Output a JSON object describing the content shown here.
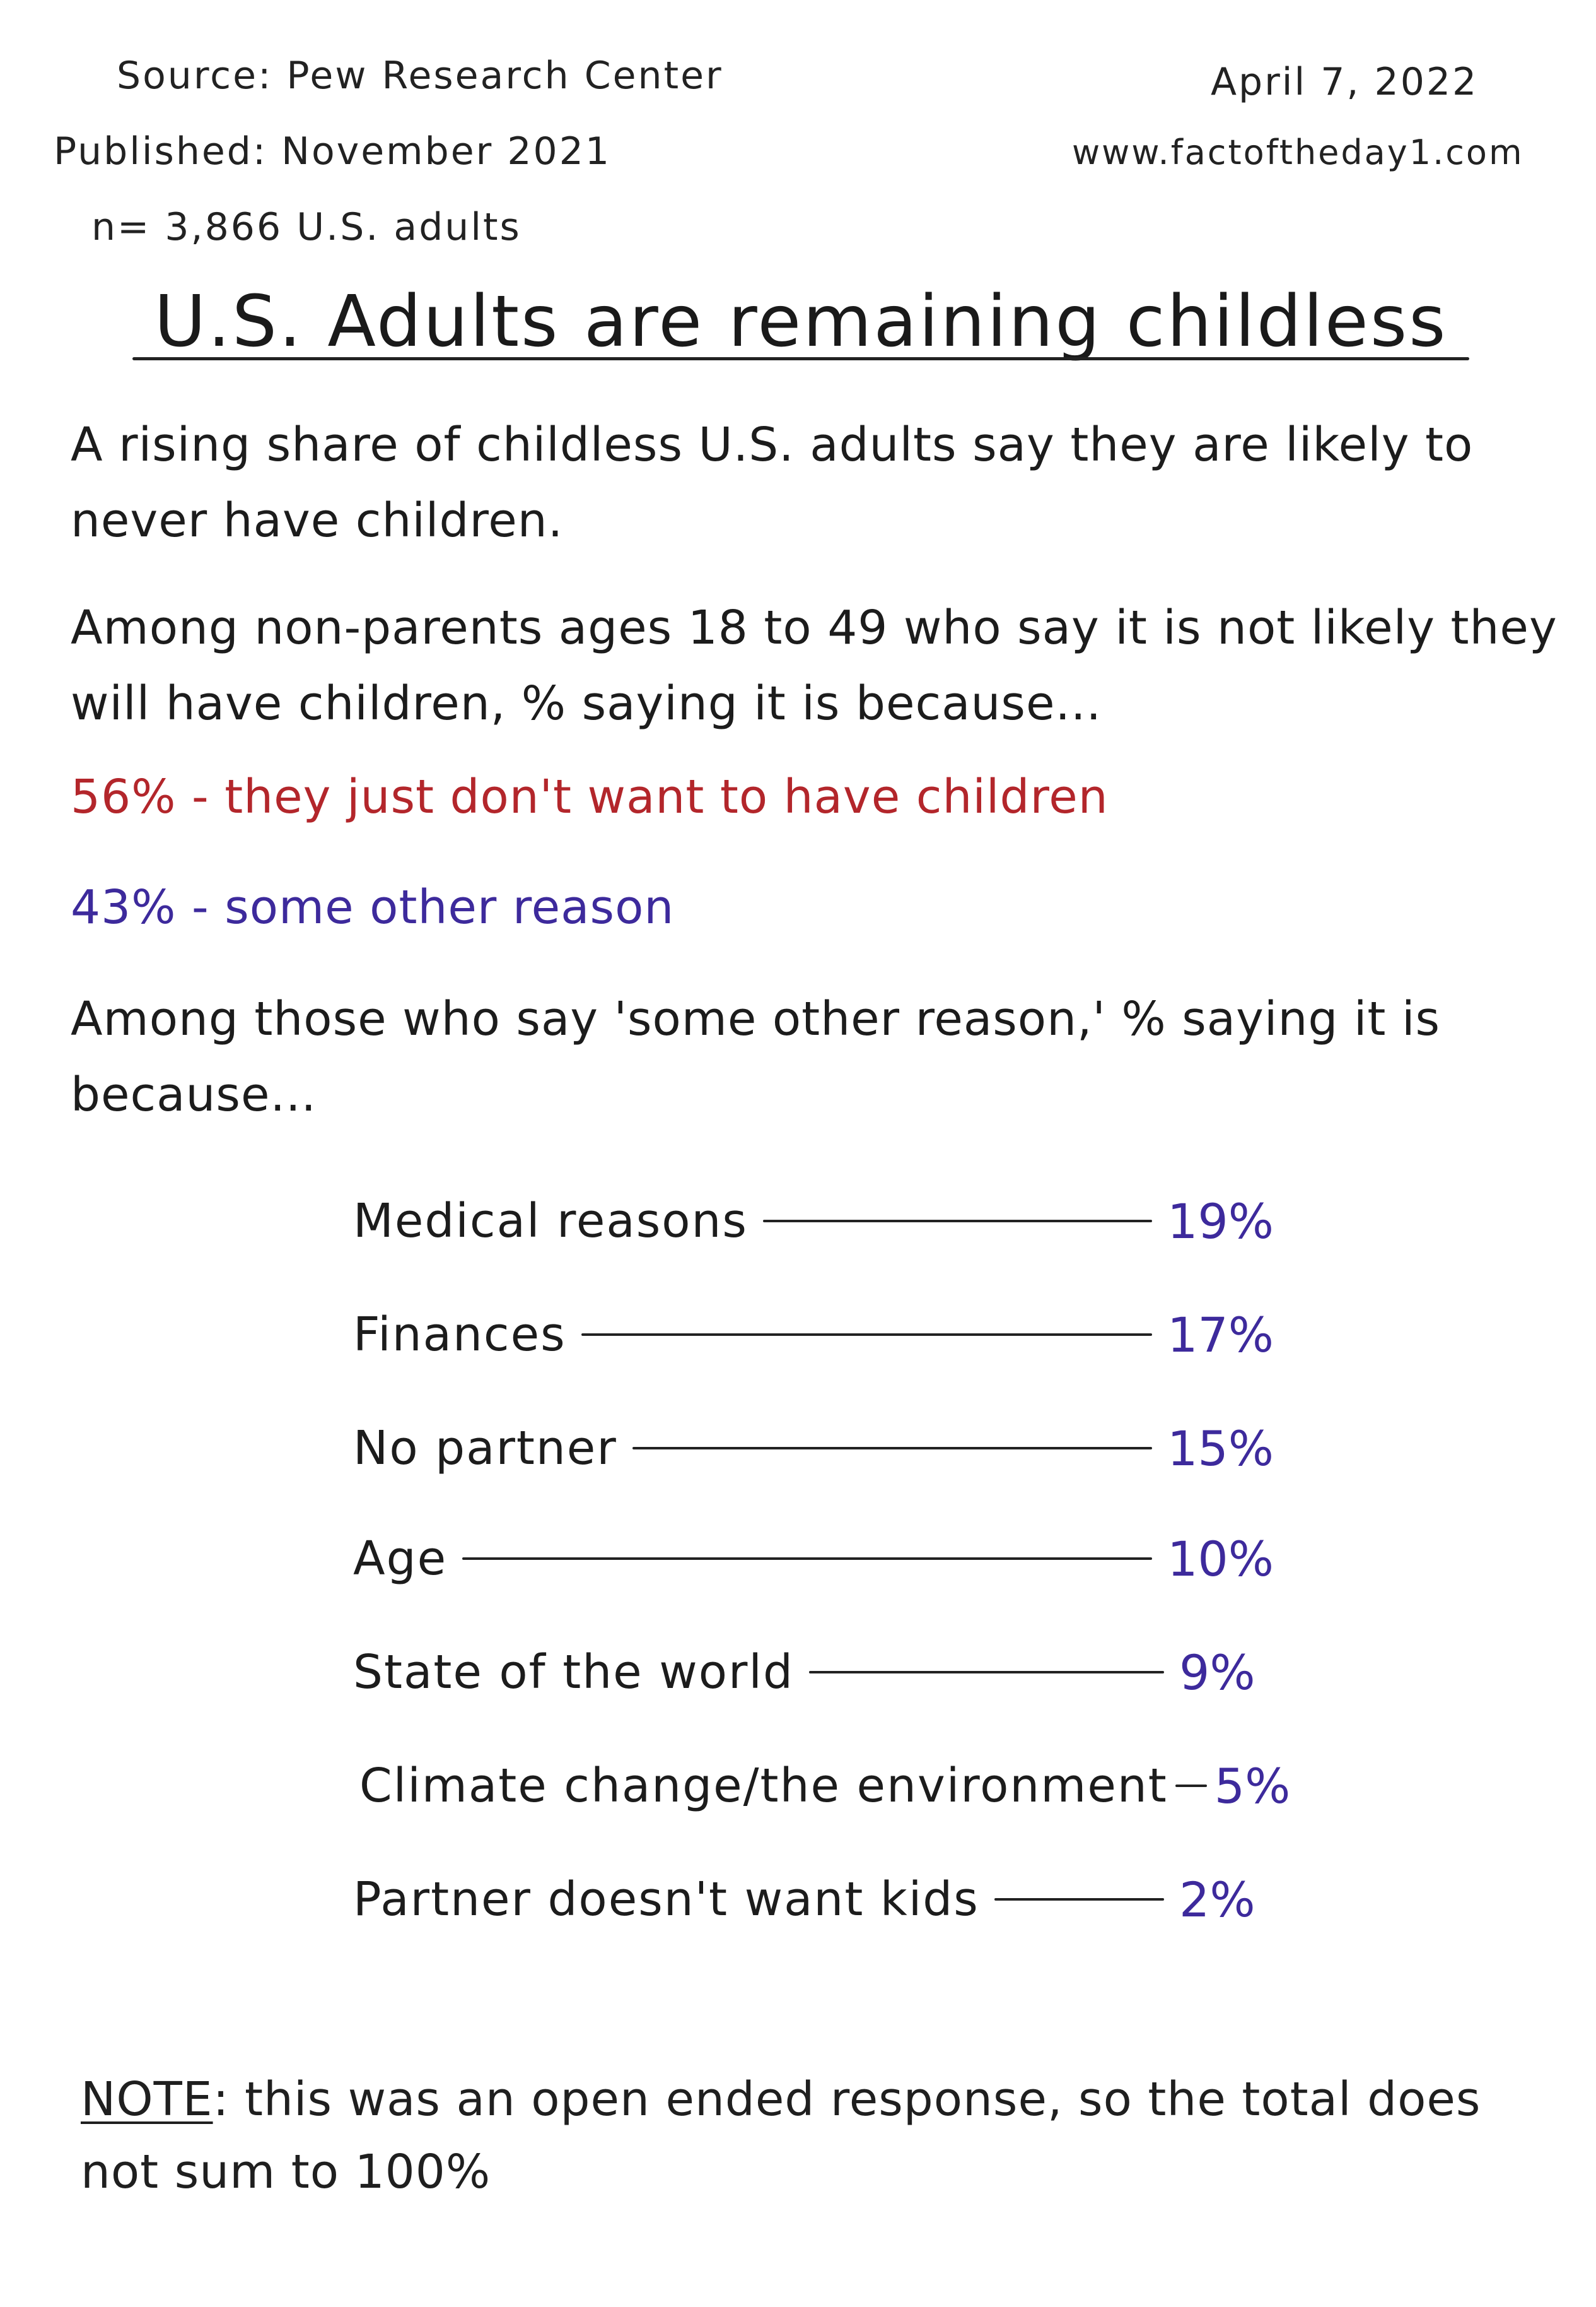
{
  "header": {
    "source": "Source: Pew Research Center",
    "published": "Published: November 2021",
    "sample": "n= 3,866 U.S. adults",
    "date": "April 7, 2022",
    "website": "www.factoftheday1.com"
  },
  "title": "U.S. Adults are remaining childless",
  "intro": "A rising share of childless U.S. adults say they are likely to never have children.",
  "question": "Among non-parents ages 18 to 49 who say it is not likely they will have children, % saying it is because...",
  "stat_main": "56% - they just don't want to have children",
  "stat_other": "43% - some other reason",
  "followup": "Among those who say 'some other reason,' % saying it is because...",
  "reasons": [
    {
      "label": "Medical reasons",
      "value": "19%"
    },
    {
      "label": "Finances",
      "value": "17%"
    },
    {
      "label": "No partner",
      "value": "15%"
    },
    {
      "label": "Age",
      "value": "10%"
    },
    {
      "label": "State of the world",
      "value": "9%"
    },
    {
      "label": "Climate change/the environment",
      "value": "5%"
    },
    {
      "label": "Partner doesn't want kids",
      "value": "2%"
    }
  ],
  "note": {
    "key": "NOTE",
    "text": ": this was an open ended response, so the total does not sum to 100%"
  },
  "colors": {
    "red_text": "#b3262b",
    "purple_text": "#3d2a9c",
    "ink": "#1c1c1c"
  }
}
